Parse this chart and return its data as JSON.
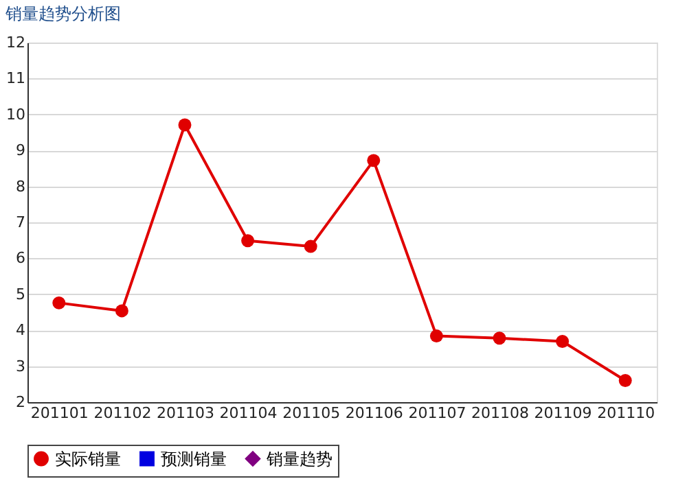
{
  "chart_data": {
    "type": "line",
    "title": "销量趋势分析图",
    "categories": [
      "201101",
      "201102",
      "201103",
      "201104",
      "201105",
      "201106",
      "201107",
      "201108",
      "201109",
      "201110"
    ],
    "series": [
      {
        "name": "实际销量",
        "color": "#e00000",
        "marker": "circle",
        "values": [
          4.76,
          4.54,
          9.71,
          6.49,
          6.33,
          8.72,
          3.84,
          3.78,
          3.69,
          2.6
        ]
      },
      {
        "name": "预测销量",
        "color": "#0000e0",
        "marker": "square",
        "values": [
          null,
          null,
          null,
          null,
          null,
          null,
          null,
          null,
          null,
          null
        ]
      },
      {
        "name": "销量趋势",
        "color": "#800080",
        "marker": "diamond",
        "values": [
          null,
          null,
          null,
          null,
          null,
          null,
          null,
          null,
          null,
          null
        ]
      }
    ],
    "ylim": [
      2,
      12
    ],
    "yticks": [
      2,
      3,
      4,
      5,
      6,
      7,
      8,
      9,
      10,
      11,
      12
    ],
    "grid": "y",
    "legend": "bottom",
    "line_style": "solid"
  }
}
